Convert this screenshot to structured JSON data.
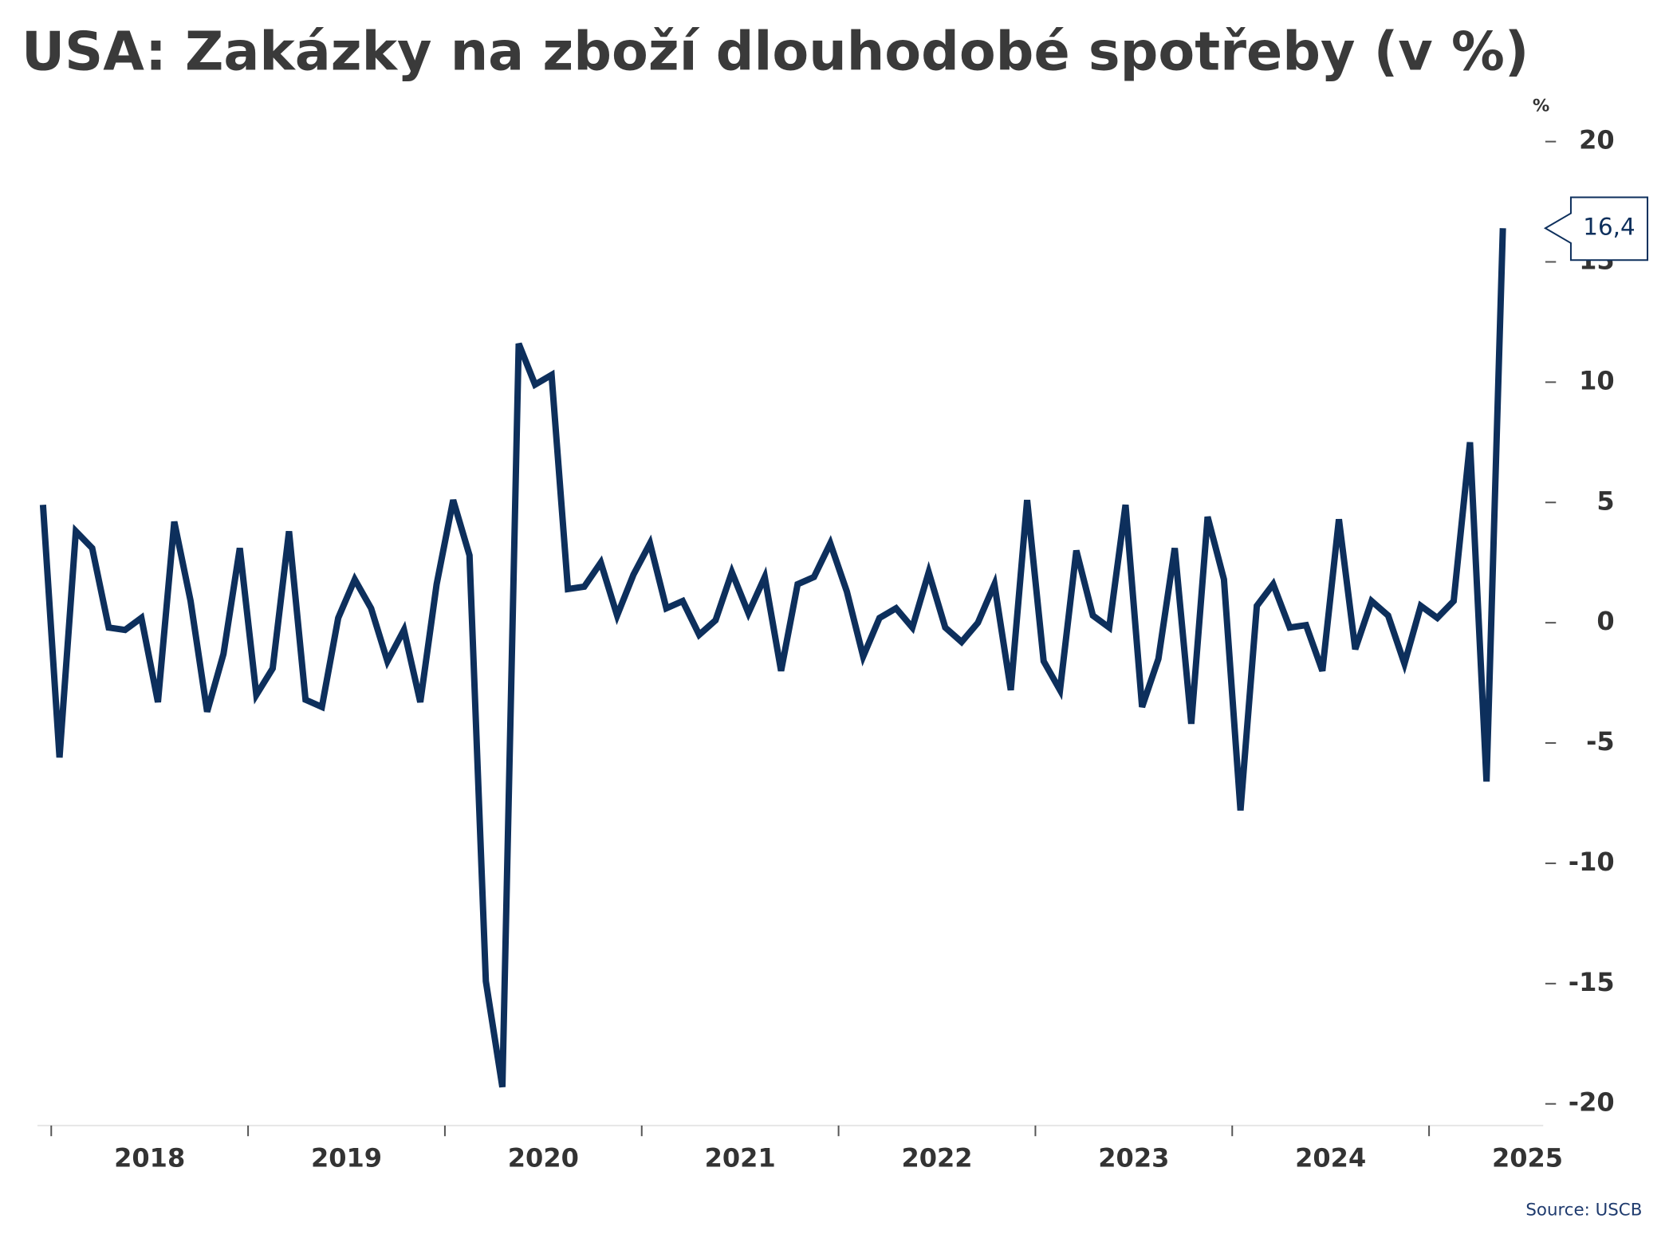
{
  "chart_data": {
    "type": "line",
    "title": "USA: Zakázky na zboží dlouhodobé spotřeby (v %)",
    "y_unit": "%",
    "source": "Source: USCB",
    "annotation": "16,4",
    "xlim": [
      2017.93,
      2025.58
    ],
    "xticks": [
      2018,
      2019,
      2020,
      2021,
      2022,
      2023,
      2024,
      2025
    ],
    "ylim": [
      -20.9,
      20.8
    ],
    "yticks": [
      20,
      15,
      10,
      5,
      0,
      -5,
      -10,
      -15,
      -20
    ],
    "x": [
      2017.958,
      2018.042,
      2018.125,
      2018.208,
      2018.292,
      2018.375,
      2018.458,
      2018.542,
      2018.625,
      2018.708,
      2018.792,
      2018.875,
      2018.958,
      2019.042,
      2019.125,
      2019.208,
      2019.292,
      2019.375,
      2019.458,
      2019.542,
      2019.625,
      2019.708,
      2019.792,
      2019.875,
      2019.958,
      2020.042,
      2020.125,
      2020.208,
      2020.292,
      2020.375,
      2020.458,
      2020.542,
      2020.625,
      2020.708,
      2020.792,
      2020.875,
      2020.958,
      2021.042,
      2021.125,
      2021.208,
      2021.292,
      2021.375,
      2021.458,
      2021.542,
      2021.625,
      2021.708,
      2021.792,
      2021.875,
      2021.958,
      2022.042,
      2022.125,
      2022.208,
      2022.292,
      2022.375,
      2022.458,
      2022.542,
      2022.625,
      2022.708,
      2022.792,
      2022.875,
      2022.958,
      2023.042,
      2023.125,
      2023.208,
      2023.292,
      2023.375,
      2023.458,
      2023.542,
      2023.625,
      2023.708,
      2023.792,
      2023.875,
      2023.958,
      2024.042,
      2024.125,
      2024.208,
      2024.292,
      2024.375,
      2024.458,
      2024.542,
      2024.625,
      2024.708,
      2024.792,
      2024.875,
      2024.958,
      2025.042,
      2025.125,
      2025.208,
      2025.292,
      2025.375
    ],
    "series": [
      {
        "name": "Zakázky",
        "color": "#0d2f5c",
        "values": [
          4.9,
          -5.6,
          3.8,
          3.1,
          -0.2,
          -0.3,
          0.2,
          -3.3,
          4.2,
          0.9,
          -3.7,
          -1.3,
          3.1,
          -3.0,
          -1.9,
          3.8,
          -3.2,
          -3.5,
          0.2,
          1.8,
          0.6,
          -1.6,
          -0.3,
          -3.3,
          1.6,
          5.1,
          2.8,
          -14.9,
          -19.3,
          11.6,
          9.9,
          10.3,
          1.4,
          1.5,
          2.5,
          0.3,
          2.0,
          3.3,
          0.6,
          0.9,
          -0.5,
          0.1,
          2.1,
          0.4,
          1.9,
          -2.0,
          1.6,
          1.9,
          3.3,
          1.3,
          -1.4,
          0.2,
          0.6,
          -0.2,
          2.1,
          -0.2,
          -0.8,
          0.0,
          1.6,
          -2.8,
          5.1,
          -1.6,
          -2.8,
          3.0,
          0.3,
          -0.2,
          4.9,
          -3.5,
          -1.5,
          3.1,
          -4.2,
          4.4,
          1.8,
          -7.8,
          0.7,
          1.6,
          -0.2,
          -0.1,
          -2.0,
          4.3,
          -1.1,
          0.9,
          0.3,
          -1.7,
          0.7,
          0.2,
          0.9,
          7.5,
          -6.6,
          16.4
        ]
      }
    ]
  }
}
